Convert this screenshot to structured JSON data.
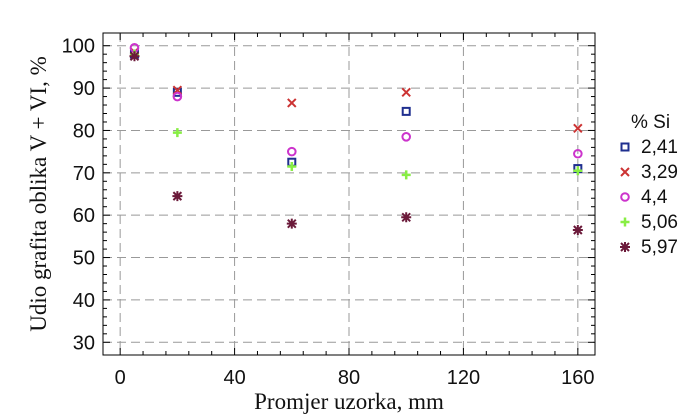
{
  "chart_data": {
    "type": "scatter",
    "title": "",
    "xlabel": "Promjer uzorka, mm",
    "ylabel": "Udio grafita oblika V + VI, %",
    "xlim": [
      -6,
      166
    ],
    "ylim": [
      27,
      103
    ],
    "xticks": [
      0,
      40,
      80,
      120,
      160
    ],
    "yticks": [
      30,
      40,
      50,
      60,
      70,
      80,
      90,
      100
    ],
    "grid": true,
    "legend": {
      "title": "% Si",
      "position": "right"
    },
    "series": [
      {
        "name": "2,41",
        "color": "#1f2f8f",
        "marker": "square",
        "x": [
          5,
          20,
          60,
          100,
          160
        ],
        "y": [
          98,
          89,
          72.5,
          84.5,
          71
        ]
      },
      {
        "name": "3,29",
        "color": "#cc3333",
        "marker": "cross",
        "x": [
          5,
          20,
          60,
          100,
          160
        ],
        "y": [
          98.5,
          89.5,
          86.5,
          89,
          80.5
        ]
      },
      {
        "name": "4,4",
        "color": "#cc33cc",
        "marker": "circle",
        "x": [
          5,
          20,
          60,
          100,
          160
        ],
        "y": [
          99.5,
          88,
          75,
          78.5,
          74.5
        ]
      },
      {
        "name": "5,06",
        "color": "#88ee44",
        "marker": "plus",
        "x": [
          5,
          20,
          60,
          100,
          160
        ],
        "y": [
          98,
          79.5,
          71.5,
          69.5,
          70.5
        ]
      },
      {
        "name": "5,97",
        "color": "#6b1a3a",
        "marker": "star",
        "x": [
          5,
          20,
          60,
          100,
          160
        ],
        "y": [
          97.5,
          64.5,
          58,
          59.5,
          56.5
        ]
      }
    ]
  }
}
